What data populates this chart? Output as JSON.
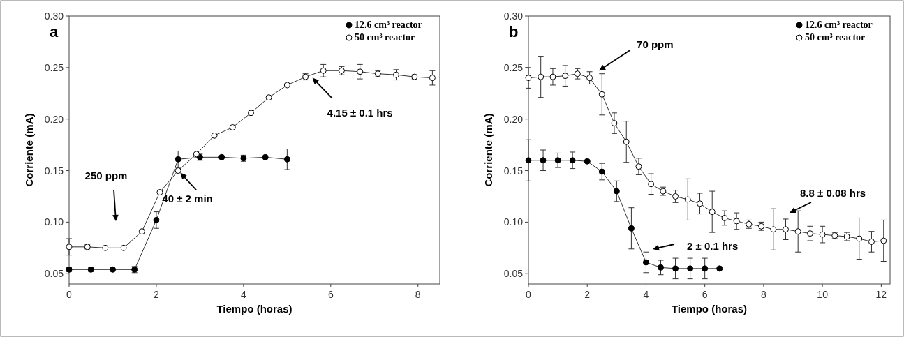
{
  "chart_data": [
    {
      "type": "line",
      "title": "a",
      "xlabel": "Tiempo (horas)",
      "ylabel": "Corriente (mA)",
      "xlim": [
        0,
        8.5
      ],
      "xticks": [
        0,
        2,
        4,
        6,
        8
      ],
      "ylim": [
        0.04,
        0.3
      ],
      "yticks": [
        {
          "value": 0.05,
          "label": "0.05"
        },
        {
          "value": 0.1,
          "label": "0.10"
        },
        {
          "value": 0.15,
          "label": "0.15"
        },
        {
          "value": 0.2,
          "label": "0.20"
        },
        {
          "value": 0.25,
          "label": "0.25"
        },
        {
          "value": 0.3,
          "label": "0.30"
        }
      ],
      "grid": false,
      "legend": "top right",
      "line_style": "solid",
      "series": [
        {
          "name": "12.6 cm³ reactor",
          "color": "#000000",
          "marker": "circle",
          "x": [
            0,
            0.5,
            1,
            1.5,
            2,
            2.5,
            3,
            3.5,
            4,
            4.5,
            5
          ],
          "values": [
            0.054,
            0.054,
            0.054,
            0.054,
            0.102,
            0.161,
            0.163,
            0.163,
            0.162,
            0.163,
            0.161
          ],
          "errors": [
            0.002,
            0.002,
            0.001,
            0.003,
            0.008,
            0.008,
            0.003,
            0.001,
            0.003,
            0.001,
            0.01
          ]
        },
        {
          "name": "50 cm³ reactor",
          "color": "#ffffff",
          "marker": "circle",
          "x": [
            0,
            0.42,
            0.83,
            1.25,
            1.67,
            2.08,
            2.5,
            2.92,
            3.33,
            3.75,
            4.17,
            4.58,
            5,
            5.42,
            5.83,
            6.25,
            6.67,
            7.08,
            7.5,
            7.92,
            8.33
          ],
          "values": [
            0.076,
            0.076,
            0.075,
            0.075,
            0.091,
            0.129,
            0.15,
            0.166,
            0.184,
            0.192,
            0.206,
            0.221,
            0.233,
            0.241,
            0.247,
            0.247,
            0.246,
            0.244,
            0.243,
            0.241,
            0.24
          ],
          "errors": [
            0.008,
            0.002,
            0.001,
            0.001,
            0.001,
            0.001,
            0.001,
            0.001,
            0.001,
            0.001,
            0.001,
            0.001,
            0.001,
            0.003,
            0.006,
            0.004,
            0.007,
            0.003,
            0.005,
            0.002,
            0.007
          ]
        }
      ],
      "annotations": [
        "250 ppm",
        {
          "text": "40 ± 2 min",
          "x": 2.55,
          "y": 0.148
        },
        {
          "text": "4.15 ± 0.1 hrs",
          "x": 5.58,
          "y": 0.24
        }
      ]
    },
    {
      "type": "line",
      "title": "b",
      "xlabel": "Tiempo (horas)",
      "ylabel": "Corriente (mA)",
      "xlim": [
        0,
        12.3
      ],
      "xticks": [
        0,
        2,
        4,
        6,
        8,
        10,
        12
      ],
      "ylim": [
        0.04,
        0.3
      ],
      "yticks": [
        {
          "value": 0.05,
          "label": "0.05"
        },
        {
          "value": 0.1,
          "label": "0.10"
        },
        {
          "value": 0.15,
          "label": "0.15"
        },
        {
          "value": 0.2,
          "label": "0.20"
        },
        {
          "value": 0.25,
          "label": "0.25"
        },
        {
          "value": 0.3,
          "label": "0.30"
        }
      ],
      "grid": false,
      "legend": "top right",
      "line_style": "solid",
      "series": [
        {
          "name": "12.6 cm³ reactor",
          "color": "#000000",
          "marker": "circle",
          "x": [
            0,
            0.5,
            1,
            1.5,
            2,
            2.5,
            3,
            3.5,
            4,
            4.5,
            5,
            5.5,
            6,
            6.5
          ],
          "values": [
            0.16,
            0.16,
            0.16,
            0.16,
            0.159,
            0.149,
            0.13,
            0.094,
            0.061,
            0.056,
            0.055,
            0.055,
            0.055,
            0.055
          ],
          "errors": [
            0.02,
            0.01,
            0.007,
            0.008,
            0.001,
            0.008,
            0.01,
            0.02,
            0.01,
            0.007,
            0.01,
            0.01,
            0.01,
            0.001
          ]
        },
        {
          "name": "50 cm³ reactor",
          "color": "#ffffff",
          "marker": "circle",
          "x": [
            0,
            0.42,
            0.83,
            1.25,
            1.67,
            2.08,
            2.5,
            2.92,
            3.33,
            3.75,
            4.17,
            4.58,
            5,
            5.42,
            5.83,
            6.25,
            6.67,
            7.08,
            7.5,
            7.92,
            8.33,
            8.75,
            9.17,
            9.58,
            10,
            10.42,
            10.83,
            11.25,
            11.67,
            12.08
          ],
          "values": [
            0.24,
            0.241,
            0.241,
            0.242,
            0.244,
            0.24,
            0.224,
            0.196,
            0.178,
            0.154,
            0.137,
            0.13,
            0.125,
            0.122,
            0.118,
            0.11,
            0.104,
            0.101,
            0.098,
            0.096,
            0.093,
            0.093,
            0.091,
            0.089,
            0.088,
            0.087,
            0.086,
            0.084,
            0.081,
            0.082
          ],
          "errors": [
            0.01,
            0.02,
            0.008,
            0.01,
            0.005,
            0.006,
            0.02,
            0.01,
            0.02,
            0.008,
            0.01,
            0.004,
            0.006,
            0.02,
            0.01,
            0.02,
            0.007,
            0.008,
            0.004,
            0.004,
            0.02,
            0.01,
            0.02,
            0.007,
            0.008,
            0.003,
            0.004,
            0.02,
            0.01,
            0.02
          ]
        }
      ],
      "annotations": [
        {
          "text": "70 ppm",
          "x": 2.4,
          "y": 0.247
        },
        "2 ± 0.1 hrs",
        "8.8 ± 0.08 hrs"
      ]
    }
  ]
}
